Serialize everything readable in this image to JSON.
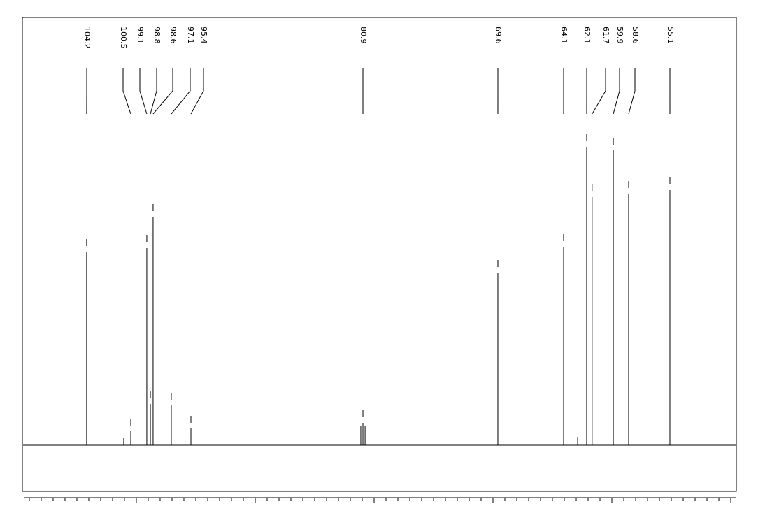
{
  "chart_data": {
    "type": "spectrum",
    "xlim": [
      109.41,
      49.59
    ],
    "xticks": [
      50,
      51,
      52,
      53,
      54,
      55,
      56,
      57,
      58,
      59,
      60,
      61,
      62,
      63,
      64,
      65,
      66,
      67,
      68,
      69,
      70,
      71,
      72,
      73,
      74,
      75,
      76,
      77,
      78,
      79,
      80,
      81,
      82,
      83,
      84,
      85,
      86,
      87,
      88,
      89,
      90,
      91,
      92,
      93,
      94,
      95,
      96,
      97,
      98,
      99,
      100,
      101,
      102,
      103,
      104,
      105,
      106,
      107,
      108,
      109
    ],
    "color": "#000000",
    "peaks": {
      "x": [
        104.18,
        101.06,
        100.47,
        99.12,
        98.82,
        98.59,
        97.06,
        95.41,
        81.12,
        80.94,
        80.76,
        69.59,
        64.06,
        62.88,
        62.12,
        61.66,
        59.88,
        58.59,
        55.12
      ],
      "values": [
        277,
        10,
        20,
        282,
        59,
        327,
        57,
        24,
        27,
        32,
        27,
        247,
        284,
        12,
        427,
        355,
        422,
        360,
        365
      ]
    },
    "peak_labels": [
      {
        "value": 104.18,
        "label": "104.2"
      },
      {
        "value": 100.47,
        "label": "100.5"
      },
      {
        "value": 99.12,
        "label": "99.1"
      },
      {
        "value": 98.82,
        "label": "98.8"
      },
      {
        "value": 98.59,
        "label": "98.6"
      },
      {
        "value": 97.06,
        "label": "97.1"
      },
      {
        "value": 95.41,
        "label": "95.4"
      },
      {
        "value": 80.94,
        "label": "80.9"
      },
      {
        "value": 69.59,
        "label": "69.6"
      },
      {
        "value": 64.06,
        "label": "64.1"
      },
      {
        "value": 62.12,
        "label": "62.1"
      },
      {
        "value": 61.66,
        "label": "61.7"
      },
      {
        "value": 59.88,
        "label": "59.9"
      },
      {
        "value": 58.59,
        "label": "58.6"
      },
      {
        "value": 55.12,
        "label": "55.1"
      }
    ]
  }
}
